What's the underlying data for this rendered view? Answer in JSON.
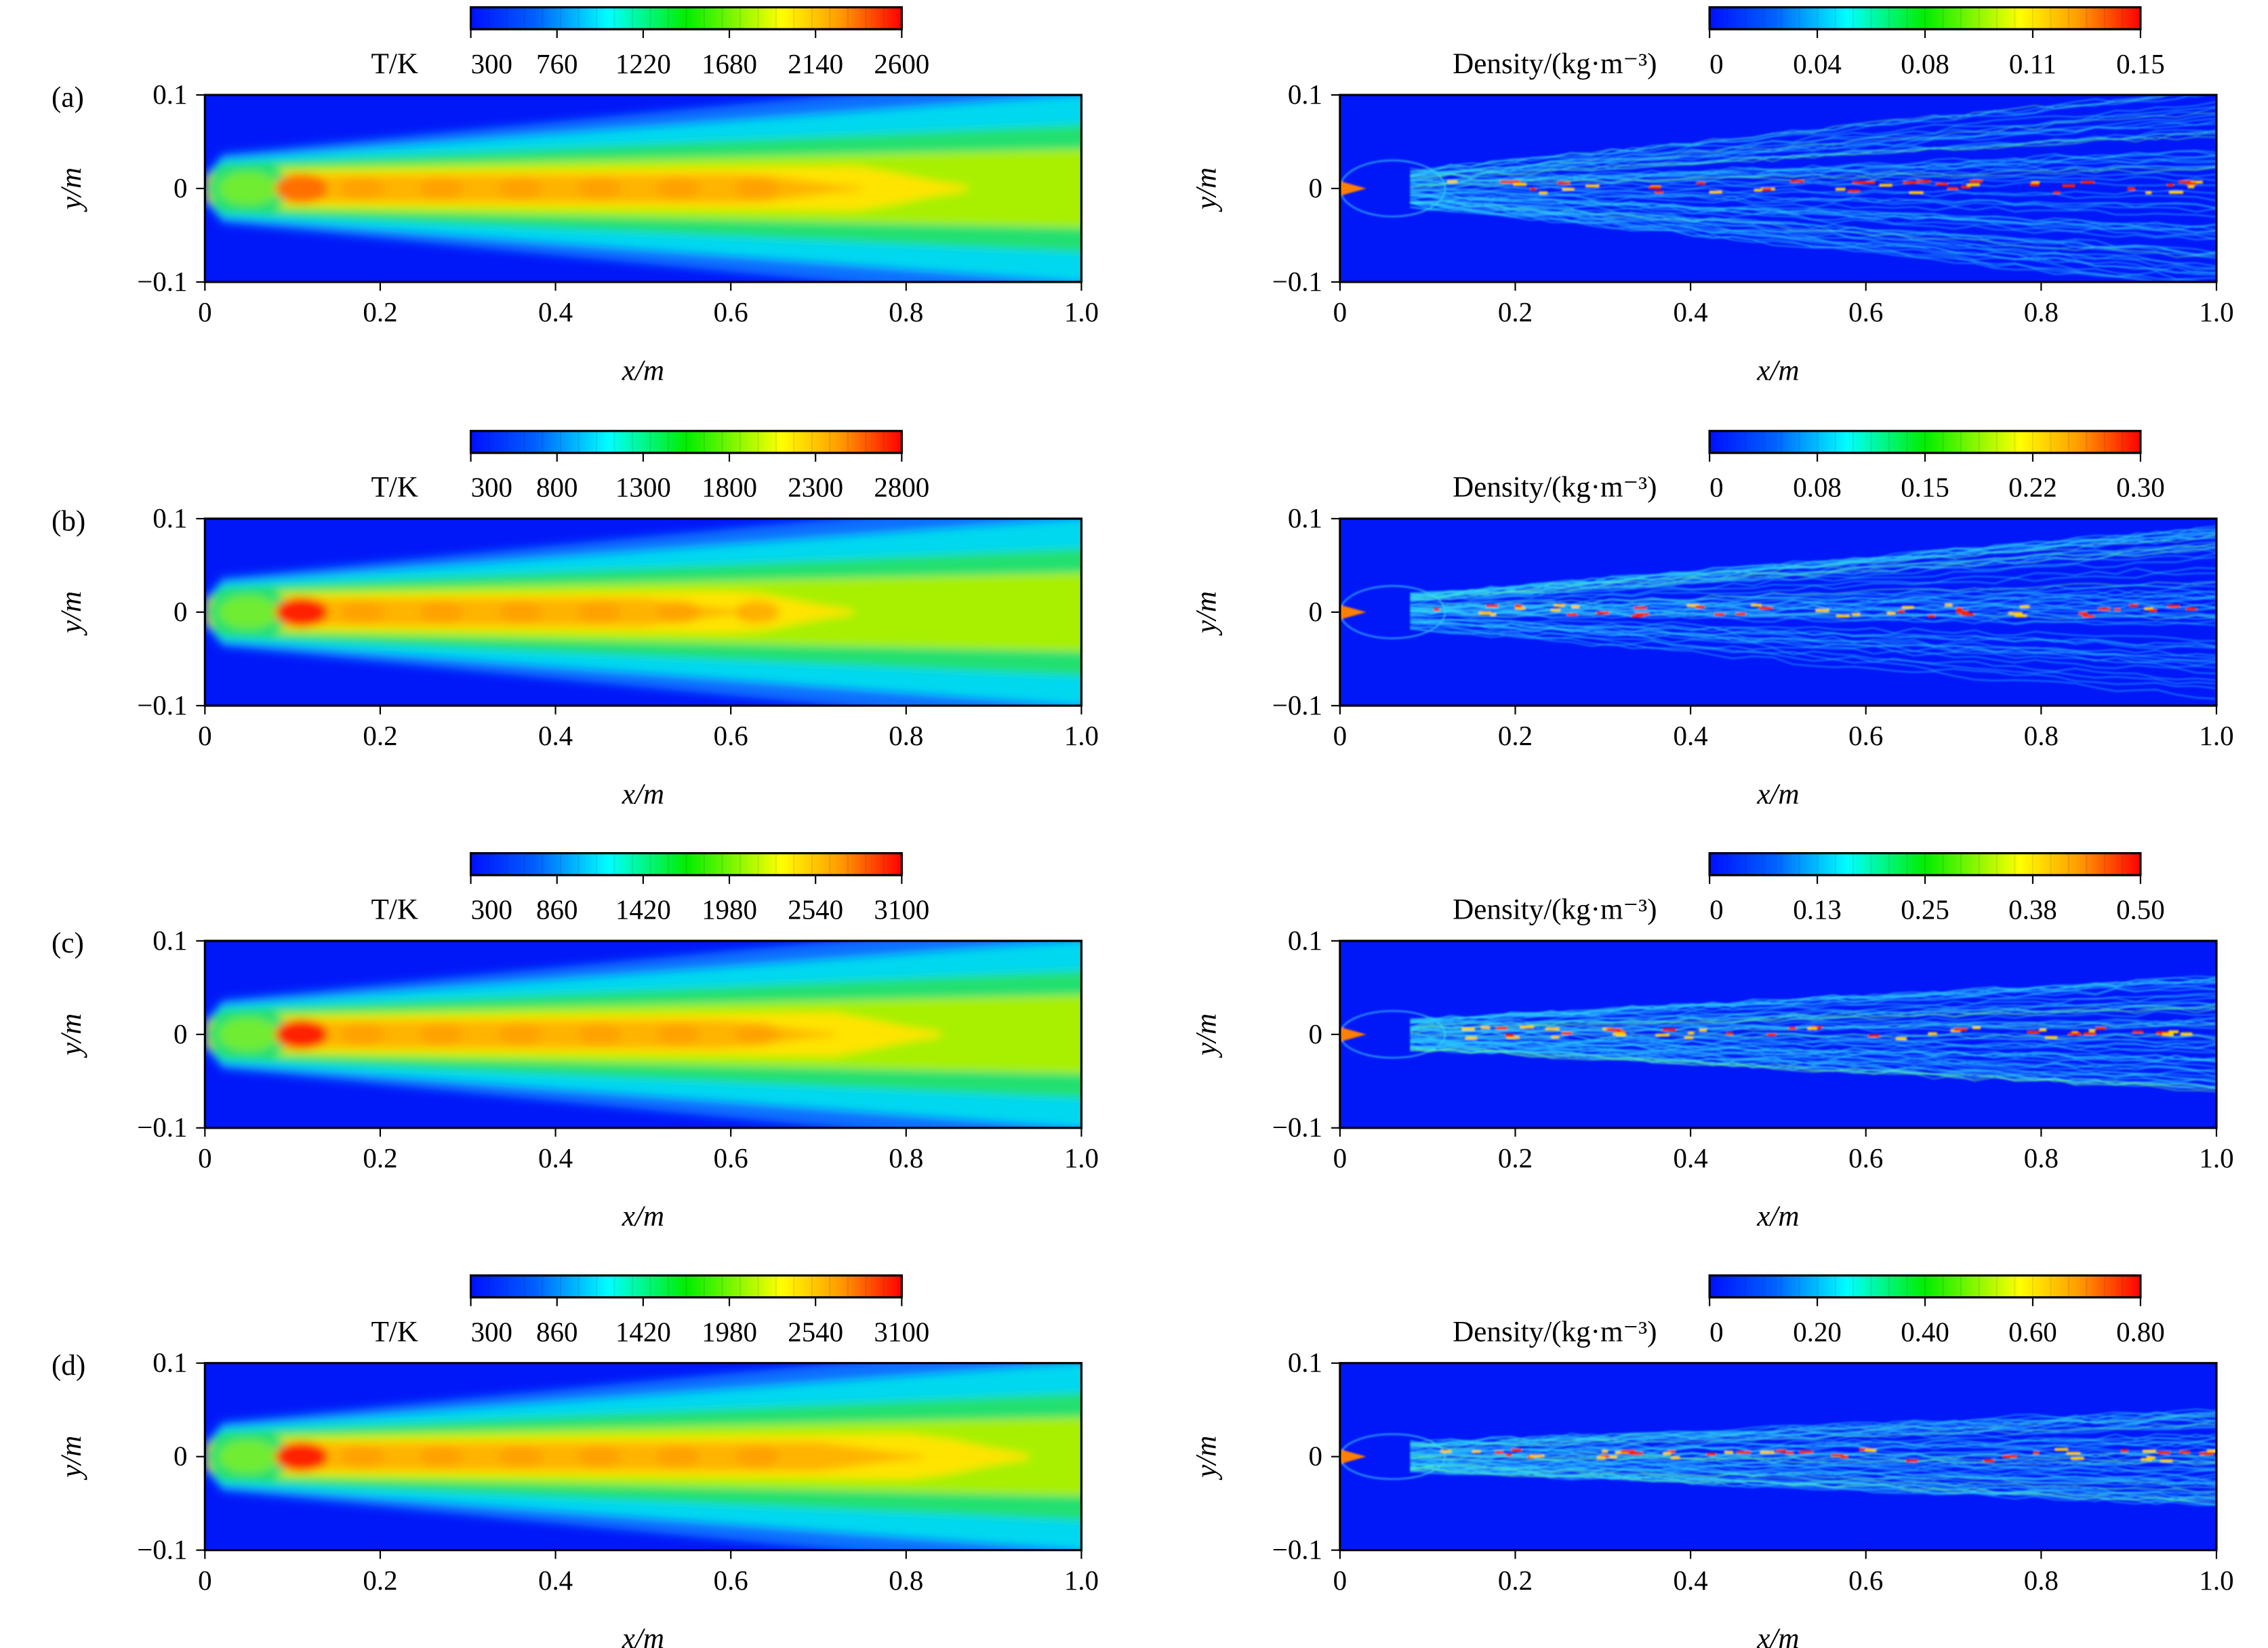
{
  "chart_data": [
    {
      "panel_label": "(a)",
      "type": "heatmap",
      "fields": [
        {
          "variable": "temperature",
          "colorbar": {
            "label": "T/K",
            "ticks": [
              "300",
              "760",
              "1220",
              "1680",
              "2140",
              "2600"
            ],
            "range": [
              300,
              2600
            ],
            "colormap": "jet"
          },
          "xlabel": "x/m",
          "ylabel": "y/m",
          "xlim": [
            0,
            1.0
          ],
          "ylim": [
            -0.1,
            0.1
          ],
          "xticks": [
            "0",
            "0.2",
            "0.4",
            "0.6",
            "0.8",
            "1.0"
          ],
          "yticks": [
            "0.1",
            "0",
            "−0.1"
          ],
          "hot_core_end": 0.75,
          "hot_spot": 0.35
        },
        {
          "variable": "density",
          "colorbar": {
            "label": "Density/(kg·m⁻³)",
            "ticks": [
              "0",
              "0.04",
              "0.08",
              "0.11",
              "0.15"
            ],
            "range": [
              0,
              0.15
            ],
            "colormap": "jet"
          },
          "xlabel": "x/m",
          "ylabel": "y/m",
          "xlim": [
            0,
            1.0
          ],
          "ylim": [
            -0.1,
            0.1
          ],
          "xticks": [
            "0",
            "0.2",
            "0.4",
            "0.6",
            "0.8",
            "1.0"
          ],
          "yticks": [
            "0.1",
            "0",
            "−0.1"
          ],
          "spread": 0.1
        }
      ]
    },
    {
      "panel_label": "(b)",
      "type": "heatmap",
      "fields": [
        {
          "variable": "temperature",
          "colorbar": {
            "label": "T/K",
            "ticks": [
              "300",
              "800",
              "1300",
              "1800",
              "2300",
              "2800"
            ],
            "range": [
              300,
              2800
            ],
            "colormap": "jet"
          },
          "xlabel": "x/m",
          "ylabel": "y/m",
          "xlim": [
            0,
            1.0
          ],
          "ylim": [
            -0.1,
            0.1
          ],
          "xticks": [
            "0",
            "0.2",
            "0.4",
            "0.6",
            "0.8",
            "1.0"
          ],
          "yticks": [
            "0.1",
            "0",
            "−0.1"
          ],
          "hot_core_end": 0.62,
          "hot_spot": 0.7
        },
        {
          "variable": "density",
          "colorbar": {
            "label": "Density/(kg·m⁻³)",
            "ticks": [
              "0",
              "0.08",
              "0.15",
              "0.22",
              "0.30"
            ],
            "range": [
              0,
              0.3
            ],
            "colormap": "jet"
          },
          "xlabel": "x/m",
          "ylabel": "y/m",
          "xlim": [
            0,
            1.0
          ],
          "ylim": [
            -0.1,
            0.1
          ],
          "xticks": [
            "0",
            "0.2",
            "0.4",
            "0.6",
            "0.8",
            "1.0"
          ],
          "yticks": [
            "0.1",
            "0",
            "−0.1"
          ],
          "spread": 0.08
        }
      ]
    },
    {
      "panel_label": "(c)",
      "type": "heatmap",
      "fields": [
        {
          "variable": "temperature",
          "colorbar": {
            "label": "T/K",
            "ticks": [
              "300",
              "860",
              "1420",
              "1980",
              "2540",
              "3100"
            ],
            "range": [
              300,
              3100
            ],
            "colormap": "jet"
          },
          "xlabel": "x/m",
          "ylabel": "y/m",
          "xlim": [
            0,
            1.0
          ],
          "ylim": [
            -0.1,
            0.1
          ],
          "xticks": [
            "0",
            "0.2",
            "0.4",
            "0.6",
            "0.8",
            "1.0"
          ],
          "yticks": [
            "0.1",
            "0",
            "−0.1"
          ],
          "hot_core_end": 0.72,
          "hot_spot": 0.9
        },
        {
          "variable": "density",
          "colorbar": {
            "label": "Density/(kg·m⁻³)",
            "ticks": [
              "0",
              "0.13",
              "0.25",
              "0.38",
              "0.50"
            ],
            "range": [
              0,
              0.5
            ],
            "colormap": "jet"
          },
          "xlabel": "x/m",
          "ylabel": "y/m",
          "xlim": [
            0,
            1.0
          ],
          "ylim": [
            -0.1,
            0.1
          ],
          "xticks": [
            "0",
            "0.2",
            "0.4",
            "0.6",
            "0.8",
            "1.0"
          ],
          "yticks": [
            "0.1",
            "0",
            "−0.1"
          ],
          "spread": 0.05
        }
      ]
    },
    {
      "panel_label": "(d)",
      "type": "heatmap",
      "fields": [
        {
          "variable": "temperature",
          "colorbar": {
            "label": "T/K",
            "ticks": [
              "300",
              "860",
              "1420",
              "1980",
              "2540",
              "3100"
            ],
            "range": [
              300,
              3100
            ],
            "colormap": "jet"
          },
          "xlabel": "x/m",
          "ylabel": "y/m",
          "xlim": [
            0,
            1.0
          ],
          "ylim": [
            -0.1,
            0.1
          ],
          "xticks": [
            "0",
            "0.2",
            "0.4",
            "0.6",
            "0.8",
            "1.0"
          ],
          "yticks": [
            "0.1",
            "0",
            "−0.1"
          ],
          "hot_core_end": 0.82,
          "hot_spot": 1.0
        },
        {
          "variable": "density",
          "colorbar": {
            "label": "Density/(kg·m⁻³)",
            "ticks": [
              "0",
              "0.20",
              "0.40",
              "0.60",
              "0.80"
            ],
            "range": [
              0,
              0.8
            ],
            "colormap": "jet"
          },
          "xlabel": "x/m",
          "ylabel": "y/m",
          "xlim": [
            0,
            1.0
          ],
          "ylim": [
            -0.1,
            0.1
          ],
          "xticks": [
            "0",
            "0.2",
            "0.4",
            "0.6",
            "0.8",
            "1.0"
          ],
          "yticks": [
            "0.1",
            "0",
            "−0.1"
          ],
          "spread": 0.04
        }
      ]
    }
  ]
}
